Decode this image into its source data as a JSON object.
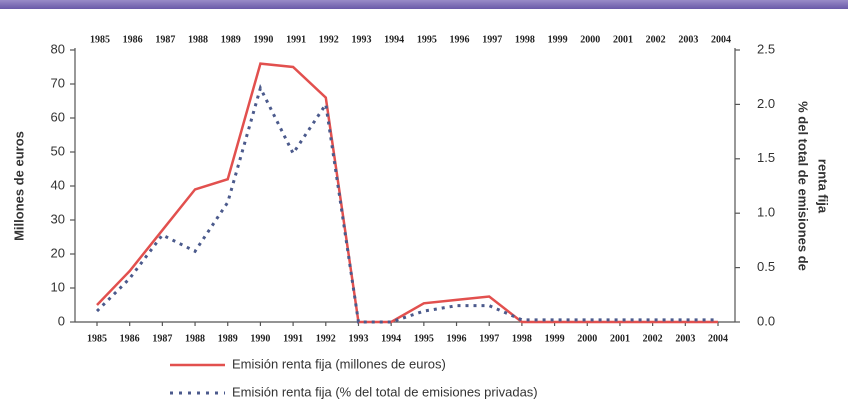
{
  "chart_data": {
    "type": "line",
    "y_label": "Millones de euros",
    "y2_label": [
      "% del total de emisiones de",
      "renta fija"
    ],
    "categories": [
      "1985",
      "1986",
      "1987",
      "1988",
      "1989",
      "1990",
      "1991",
      "1992",
      "1993",
      "1994",
      "1995",
      "1996",
      "1997",
      "1998",
      "1999",
      "2000",
      "2001",
      "2002",
      "2003",
      "2004"
    ],
    "series": [
      {
        "name": "Emisión renta fija (millones de euros)",
        "color": "#e2504e",
        "style": "solid",
        "values": [
          5,
          15,
          27,
          39,
          42,
          76,
          75,
          66,
          0,
          0,
          5.5,
          6.5,
          7.5,
          0,
          0,
          0,
          0,
          0,
          0,
          0
        ]
      },
      {
        "name": "Emisión renta fija (% del total de emisiones privadas)",
        "color": "#4b5a8c",
        "style": "dotted",
        "axis": "y2",
        "values": [
          0.1,
          0.4,
          0.8,
          0.65,
          1.1,
          2.15,
          1.55,
          2.0,
          0,
          0,
          0.1,
          0.15,
          0.15,
          0.02,
          0.02,
          0.02,
          0.02,
          0.02,
          0.02,
          0.02
        ]
      }
    ],
    "ylim": [
      0,
      80
    ],
    "yticks": [
      0,
      10,
      20,
      30,
      40,
      50,
      60,
      70,
      80
    ],
    "y2lim": [
      0,
      2.5
    ],
    "y2ticks": [
      {
        "value": 0,
        "label": "0.0"
      },
      0.5,
      {
        "value": 1,
        "label": "1.0"
      },
      1.5,
      {
        "value": 2,
        "label": "2.0"
      },
      2.5
    ],
    "grid": false
  }
}
